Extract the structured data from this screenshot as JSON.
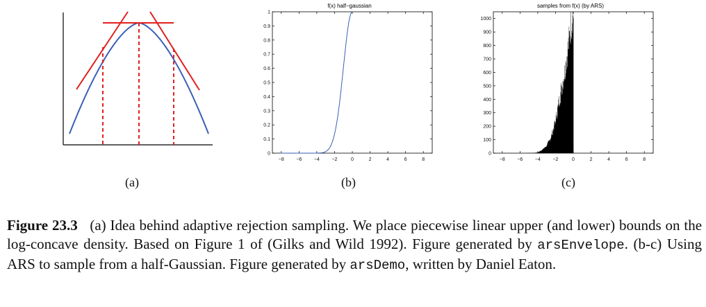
{
  "panels": {
    "a": {
      "label": "(a)"
    },
    "b": {
      "label": "(b)",
      "title": "f(x) half−gaussian"
    },
    "c": {
      "label": "(c)",
      "title": "samples from f(x) (by ARS)"
    }
  },
  "caption": {
    "figure_number": "Figure 23.3",
    "part1": "(a) Idea behind adaptive rejection sampling. We place piecewise linear upper (and lower) bounds on the log-concave density. Based on Figure 1 of (Gilks and Wild 1992). Figure generated by ",
    "code1": "arsEnvelope",
    "part2": ". (b-c) Using ARS to sample from a half-Gaussian. Figure generated by ",
    "code2": "arsDemo",
    "part3": ", written by Daniel Eaton."
  },
  "colors": {
    "curve": "#3a5fb5",
    "envelope": "#e0201f",
    "bars": "#000000"
  },
  "chart_data": [
    {
      "type": "line",
      "panel": "a",
      "title": "",
      "xlabel": "",
      "ylabel": "",
      "series": [
        {
          "kind": "log-concave density (concave curve)",
          "color": "#3a5fb5"
        },
        {
          "kind": "tangent upper bounds (3 lines)",
          "color": "#e0201f"
        },
        {
          "kind": "dashed vertical lines at 3 abscissae",
          "color": "#e0201f"
        }
      ]
    },
    {
      "type": "line",
      "panel": "b",
      "title": "f(x) half−gaussian",
      "xticks": [
        -8,
        -6,
        -4,
        -2,
        0,
        2,
        4,
        6,
        8
      ],
      "yticks": [
        0,
        0.1,
        0.2,
        0.3,
        0.4,
        0.5,
        0.6,
        0.7,
        0.8,
        0.9,
        1
      ],
      "xlim": [
        -9,
        9
      ],
      "ylim": [
        0,
        1
      ],
      "x": [
        -8,
        -4,
        -3.5,
        -3,
        -2.5,
        -2,
        -1.5,
        -1,
        -0.5,
        0
      ],
      "y": [
        0,
        0.0003,
        0.002,
        0.011,
        0.044,
        0.135,
        0.325,
        0.607,
        0.882,
        1
      ]
    },
    {
      "type": "bar",
      "panel": "c",
      "title": "samples from f(x) (by ARS)",
      "xticks": [
        -8,
        -6,
        -4,
        -2,
        0,
        2,
        4,
        6,
        8
      ],
      "yticks": [
        0,
        100,
        200,
        300,
        400,
        500,
        600,
        700,
        800,
        900,
        1000
      ],
      "xlim": [
        -9,
        9
      ],
      "ylim": [
        0,
        1050
      ],
      "bin_centers": [
        -4.5,
        -4.0,
        -3.5,
        -3.0,
        -2.5,
        -2.0,
        -1.5,
        -1.0,
        -0.5,
        -0.1
      ],
      "counts": [
        2,
        5,
        25,
        55,
        120,
        240,
        420,
        600,
        820,
        1040
      ]
    }
  ]
}
